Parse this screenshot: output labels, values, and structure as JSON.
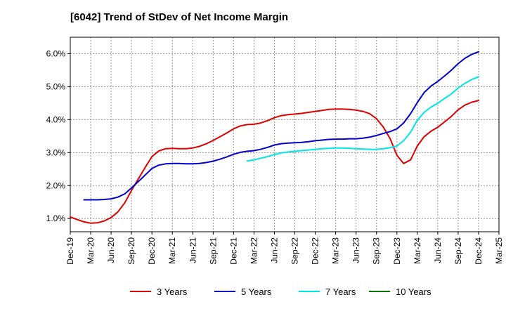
{
  "chart_data": {
    "type": "line",
    "title": "[6042]  Trend of StDev of Net Income Margin",
    "x_ticks": [
      "Dec-19",
      "Mar-20",
      "Jun-20",
      "Sep-20",
      "Dec-20",
      "Mar-21",
      "Jun-21",
      "Sep-21",
      "Dec-21",
      "Mar-22",
      "Jun-22",
      "Sep-22",
      "Dec-22",
      "Mar-23",
      "Jun-23",
      "Sep-23",
      "Dec-23",
      "Mar-24",
      "Jun-24",
      "Sep-24",
      "Dec-24",
      "Mar-25"
    ],
    "y_ticks": [
      "1.0%",
      "2.0%",
      "3.0%",
      "4.0%",
      "5.0%",
      "6.0%"
    ],
    "ylim": [
      0.6,
      6.5
    ],
    "xlim": [
      0,
      21
    ],
    "grid": true,
    "legend_position": "bottom",
    "series": [
      {
        "name": "3 Years",
        "color": "#dd0000",
        "x": [
          0,
          0.33,
          0.67,
          1,
          1.33,
          1.67,
          2,
          2.33,
          2.67,
          3,
          3.33,
          3.67,
          4,
          4.33,
          4.67,
          5,
          5.33,
          5.67,
          6,
          6.33,
          6.67,
          7,
          7.33,
          7.67,
          8,
          8.33,
          8.67,
          9,
          9.33,
          9.67,
          10,
          10.33,
          10.67,
          11,
          11.33,
          11.67,
          12,
          12.33,
          12.67,
          13,
          13.33,
          13.67,
          14,
          14.33,
          14.67,
          15,
          15.33,
          15.67,
          16,
          16.33,
          16.67,
          17,
          17.33,
          17.67,
          18,
          18.33,
          18.67,
          19,
          19.33,
          19.67,
          20
        ],
        "values": [
          1.05,
          0.97,
          0.9,
          0.86,
          0.87,
          0.93,
          1.03,
          1.2,
          1.48,
          1.85,
          2.2,
          2.55,
          2.88,
          3.05,
          3.12,
          3.13,
          3.12,
          3.12,
          3.14,
          3.19,
          3.27,
          3.37,
          3.48,
          3.6,
          3.72,
          3.81,
          3.85,
          3.86,
          3.9,
          3.97,
          4.06,
          4.12,
          4.15,
          4.17,
          4.19,
          4.22,
          4.25,
          4.28,
          4.31,
          4.32,
          4.32,
          4.31,
          4.29,
          4.25,
          4.18,
          4.03,
          3.78,
          3.42,
          2.92,
          2.67,
          2.78,
          3.2,
          3.48,
          3.65,
          3.77,
          3.93,
          4.1,
          4.3,
          4.44,
          4.53,
          4.58
        ]
      },
      {
        "name": "5 Years",
        "color": "#0000cc",
        "x": [
          0.67,
          1,
          1.33,
          1.67,
          2,
          2.33,
          2.67,
          3,
          3.33,
          3.67,
          4,
          4.33,
          4.67,
          5,
          5.33,
          5.67,
          6,
          6.33,
          6.67,
          7,
          7.33,
          7.67,
          8,
          8.33,
          8.67,
          9,
          9.33,
          9.67,
          10,
          10.33,
          10.67,
          11,
          11.33,
          11.67,
          12,
          12.33,
          12.67,
          13,
          13.33,
          13.67,
          14,
          14.33,
          14.67,
          15,
          15.33,
          15.67,
          16,
          16.33,
          16.67,
          17,
          17.33,
          17.67,
          18,
          18.33,
          18.67,
          19,
          19.33,
          19.67,
          20
        ],
        "values": [
          1.57,
          1.57,
          1.57,
          1.58,
          1.6,
          1.65,
          1.75,
          1.93,
          2.12,
          2.32,
          2.52,
          2.62,
          2.66,
          2.67,
          2.67,
          2.66,
          2.66,
          2.67,
          2.7,
          2.74,
          2.8,
          2.87,
          2.95,
          3.01,
          3.04,
          3.06,
          3.1,
          3.16,
          3.23,
          3.27,
          3.29,
          3.3,
          3.31,
          3.33,
          3.36,
          3.38,
          3.4,
          3.41,
          3.41,
          3.42,
          3.42,
          3.44,
          3.47,
          3.52,
          3.58,
          3.64,
          3.72,
          3.9,
          4.18,
          4.52,
          4.82,
          5.02,
          5.16,
          5.32,
          5.5,
          5.7,
          5.86,
          5.98,
          6.06
        ]
      },
      {
        "name": "7 Years",
        "color": "#00e5e5",
        "x": [
          8.67,
          9,
          9.33,
          9.67,
          10,
          10.33,
          10.67,
          11,
          11.33,
          11.67,
          12,
          12.33,
          12.67,
          13,
          13.33,
          13.67,
          14,
          14.33,
          14.67,
          15,
          15.33,
          15.67,
          16,
          16.33,
          16.67,
          17,
          17.33,
          17.67,
          18,
          18.33,
          18.67,
          19,
          19.33,
          19.67,
          20
        ],
        "values": [
          2.75,
          2.78,
          2.83,
          2.88,
          2.94,
          2.99,
          3.02,
          3.04,
          3.06,
          3.08,
          3.1,
          3.12,
          3.13,
          3.14,
          3.14,
          3.13,
          3.12,
          3.11,
          3.1,
          3.1,
          3.12,
          3.15,
          3.2,
          3.36,
          3.62,
          3.98,
          4.22,
          4.38,
          4.5,
          4.64,
          4.78,
          4.96,
          5.1,
          5.22,
          5.3
        ]
      },
      {
        "name": "10 Years",
        "color": "#007700",
        "x": [],
        "values": []
      }
    ]
  }
}
